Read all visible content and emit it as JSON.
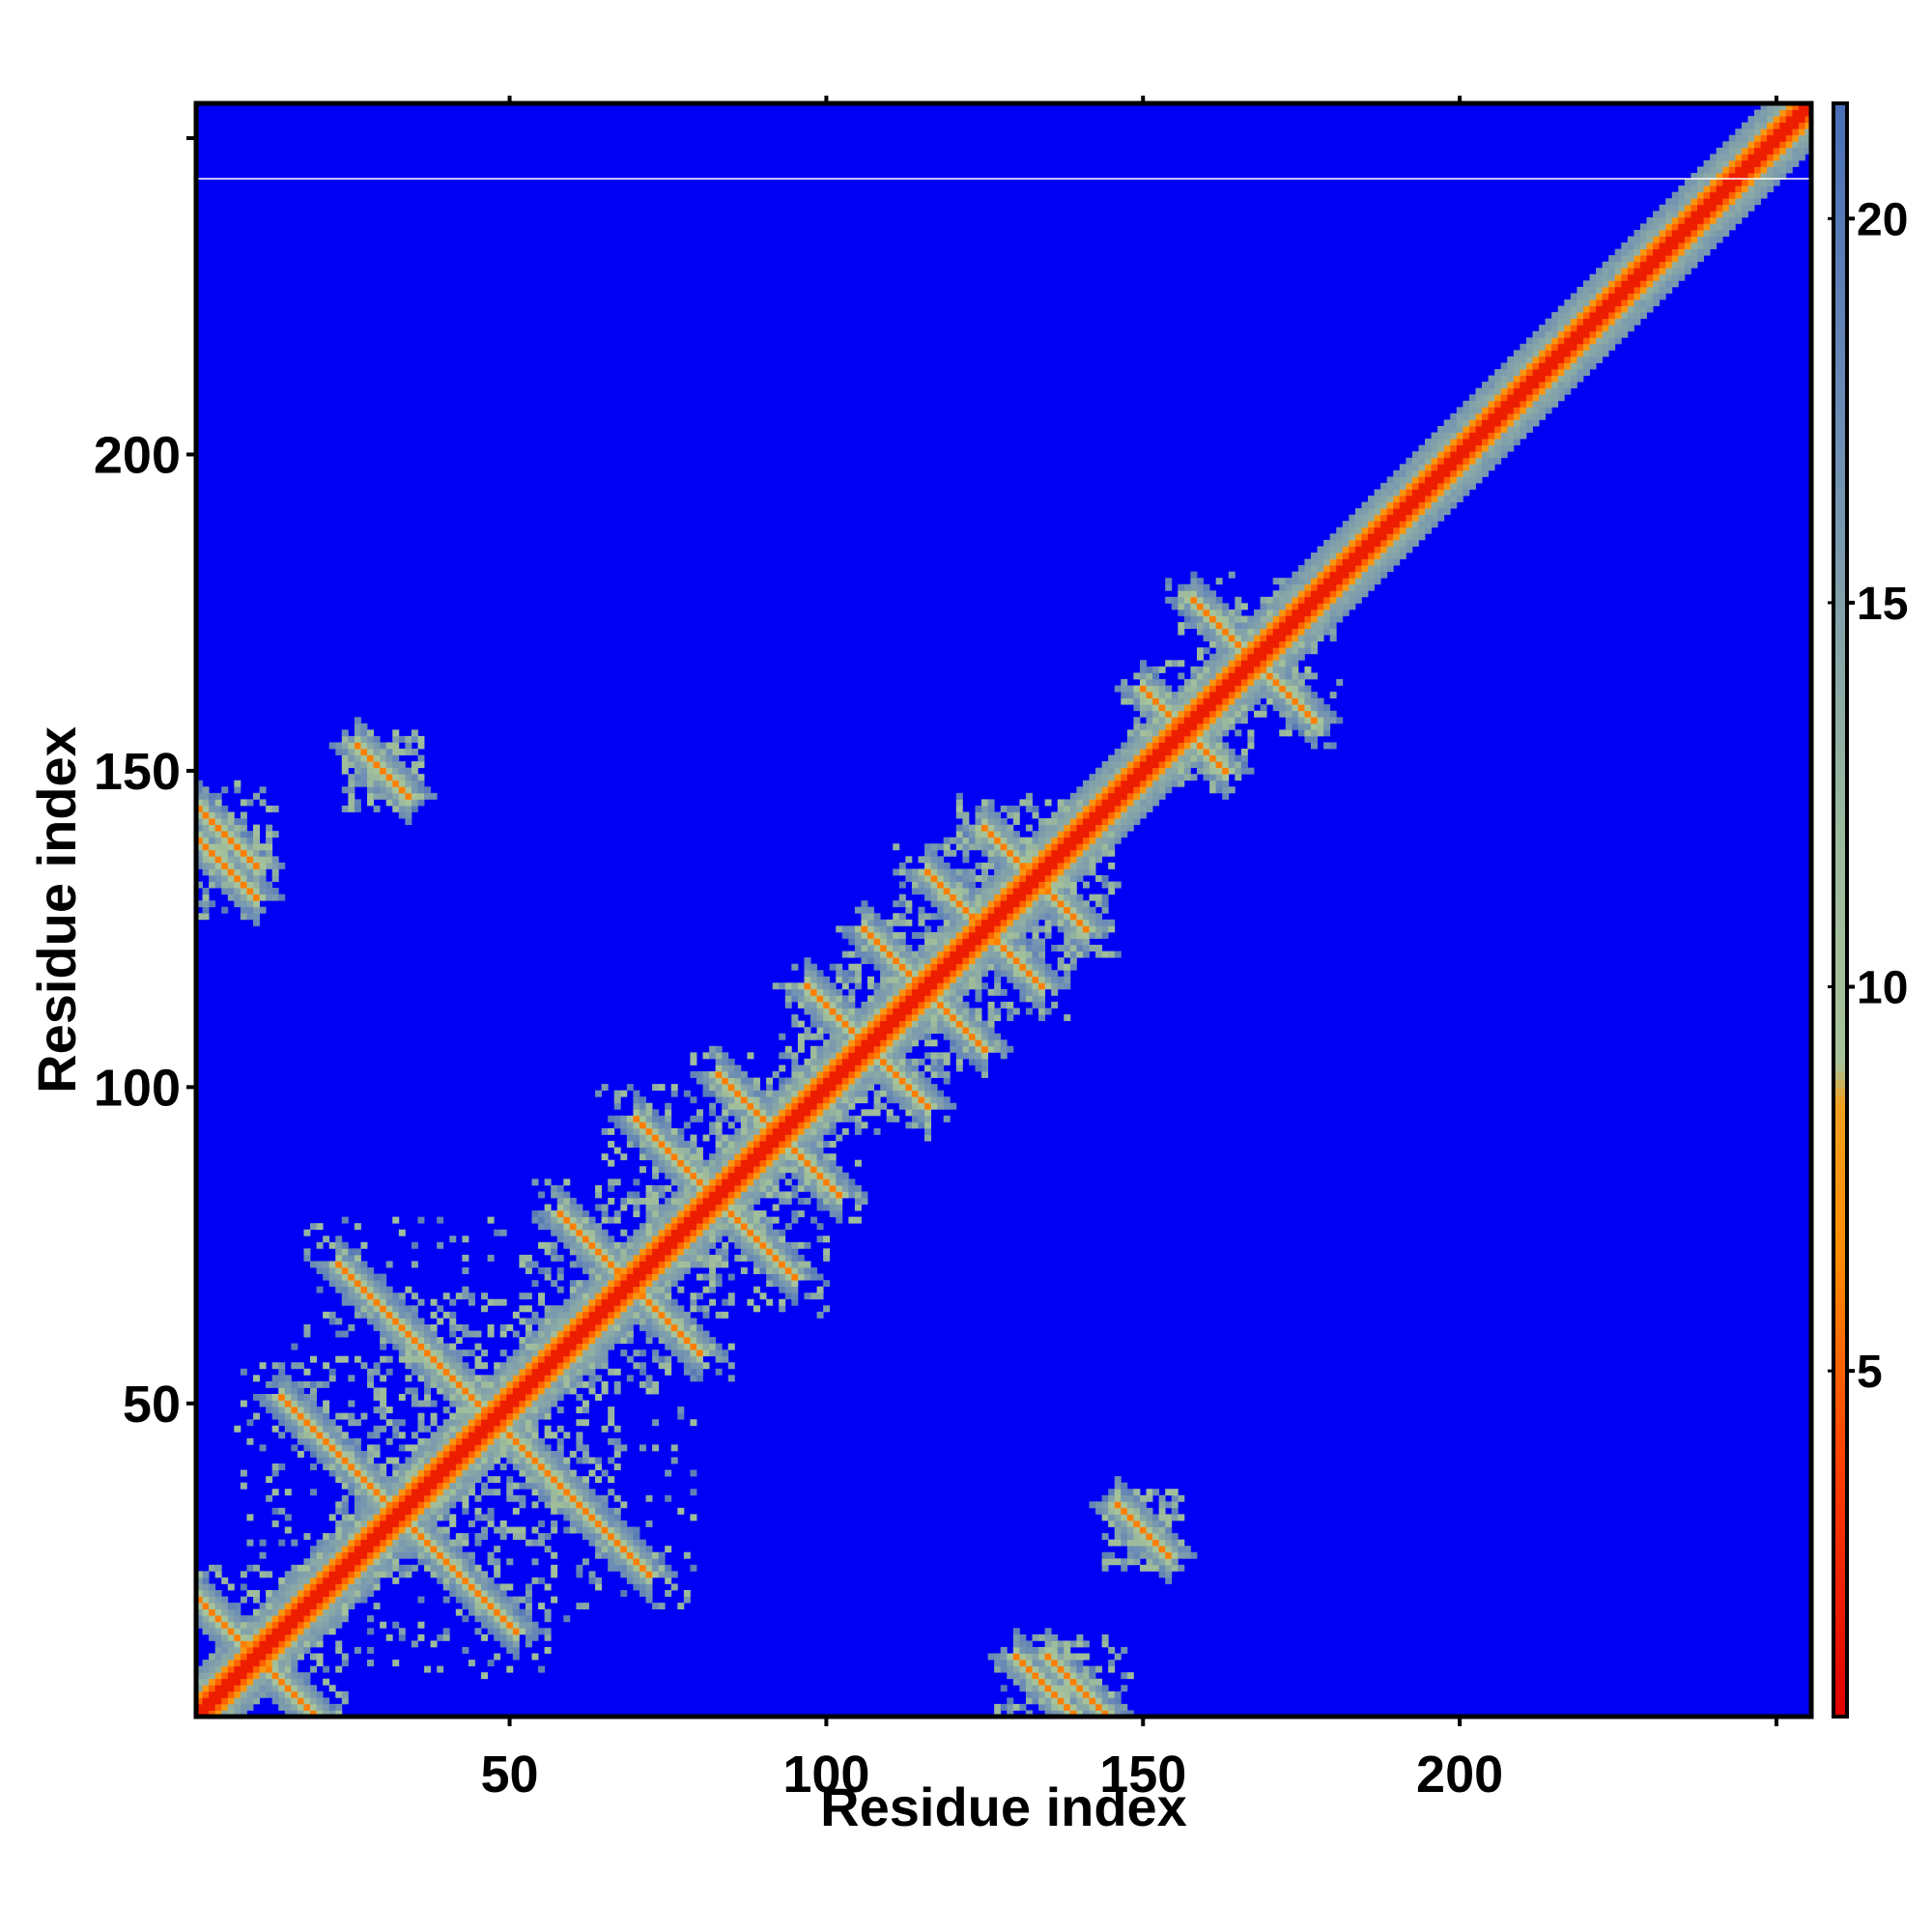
{
  "chart_data": {
    "type": "heatmap",
    "title": "",
    "xlabel": "Residue index",
    "ylabel": "Residue index",
    "n_residues": 255,
    "xlim": [
      1,
      255
    ],
    "ylim": [
      1,
      255
    ],
    "x_ticks": [
      50,
      100,
      150,
      200
    ],
    "y_ticks": [
      50,
      100,
      150,
      200
    ],
    "x_tick_labels": [
      "50",
      "100",
      "150",
      "200"
    ],
    "y_tick_labels": [
      "50",
      "100",
      "150",
      "200"
    ],
    "colorbar": {
      "range": [
        0.5,
        21.5
      ],
      "ticks": [
        5,
        10,
        15,
        20
      ],
      "tick_labels": [
        "5",
        "10",
        "15",
        "20"
      ],
      "stops": [
        {
          "value": 0.5,
          "color": "#e00000"
        },
        {
          "value": 4,
          "color": "#ff4400"
        },
        {
          "value": 6.5,
          "color": "#ff8c00"
        },
        {
          "value": 8.5,
          "color": "#f0a020"
        },
        {
          "value": 9,
          "color": "#a6c39a"
        },
        {
          "value": 12,
          "color": "#9cba9c"
        },
        {
          "value": 17,
          "color": "#6f8fb4"
        },
        {
          "value": 21.5,
          "color": "#4a6fb8"
        }
      ],
      "background_color": "#0000f4"
    },
    "secondary_structure_contacts": {
      "diagonal_width": 1,
      "helical_band_color": "#ff9900",
      "description_of_features": "diagonal contact band with cross-shaped helix-helix contacts"
    },
    "contact_clusters": [
      {
        "x": 3,
        "y": 3,
        "length": 252,
        "kind": "diagonal"
      },
      {
        "x": 10,
        "y": 10,
        "length": 18,
        "kind": "anti"
      },
      {
        "x": 25,
        "y": 40,
        "length": 22,
        "kind": "anti"
      },
      {
        "x": 35,
        "y": 60,
        "length": 24,
        "kind": "anti"
      },
      {
        "x": 50,
        "y": 45,
        "length": 22,
        "kind": "anti"
      },
      {
        "x": 68,
        "y": 70,
        "length": 20,
        "kind": "anti"
      },
      {
        "x": 80,
        "y": 85,
        "length": 20,
        "kind": "anti"
      },
      {
        "x": 90,
        "y": 95,
        "length": 14,
        "kind": "anti"
      },
      {
        "x": 105,
        "y": 108,
        "length": 16,
        "kind": "anti"
      },
      {
        "x": 113,
        "y": 118,
        "length": 14,
        "kind": "anti"
      },
      {
        "x": 125,
        "y": 125,
        "length": 18,
        "kind": "anti"
      },
      {
        "x": 133,
        "y": 133,
        "length": 16,
        "kind": "anti"
      },
      {
        "x": 5,
        "y": 140,
        "length": 10,
        "kind": "anti"
      },
      {
        "x": 30,
        "y": 150,
        "length": 8,
        "kind": "anti"
      },
      {
        "x": 135,
        "y": 5,
        "length": 10,
        "kind": "anti"
      },
      {
        "x": 150,
        "y": 30,
        "length": 8,
        "kind": "anti"
      },
      {
        "x": 165,
        "y": 170,
        "length": 14,
        "kind": "anti"
      },
      {
        "x": 158,
        "y": 155,
        "length": 10,
        "kind": "anti"
      }
    ]
  }
}
